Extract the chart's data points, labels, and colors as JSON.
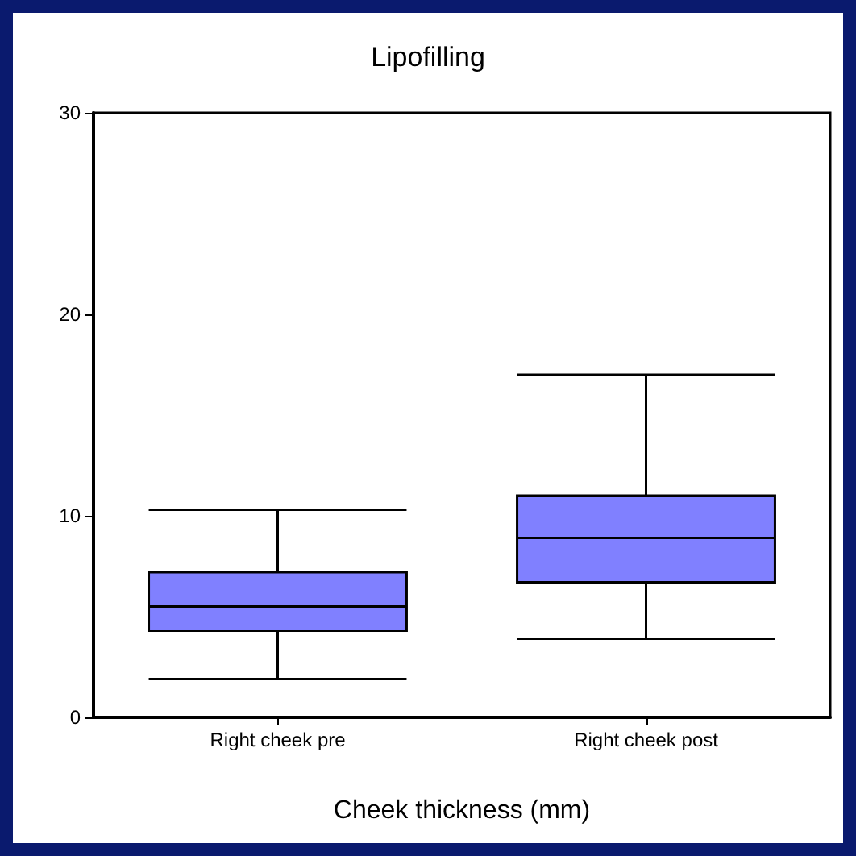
{
  "chart_data": {
    "type": "box",
    "title": "Lipofilling",
    "xlabel": "Cheek thickness (mm)",
    "categories": [
      "Right cheek pre",
      "Right cheek post"
    ],
    "color": "#8080ff",
    "boxes": [
      {
        "low": 1.9,
        "q1": 4.3,
        "median": 5.5,
        "q3": 7.2,
        "high": 10.3
      },
      {
        "low": 3.9,
        "q1": 6.7,
        "median": 8.9,
        "q3": 11.0,
        "high": 17.0
      }
    ],
    "ylim": [
      0,
      30
    ],
    "yticks": [
      0,
      10,
      20,
      30
    ],
    "grid": false
  }
}
